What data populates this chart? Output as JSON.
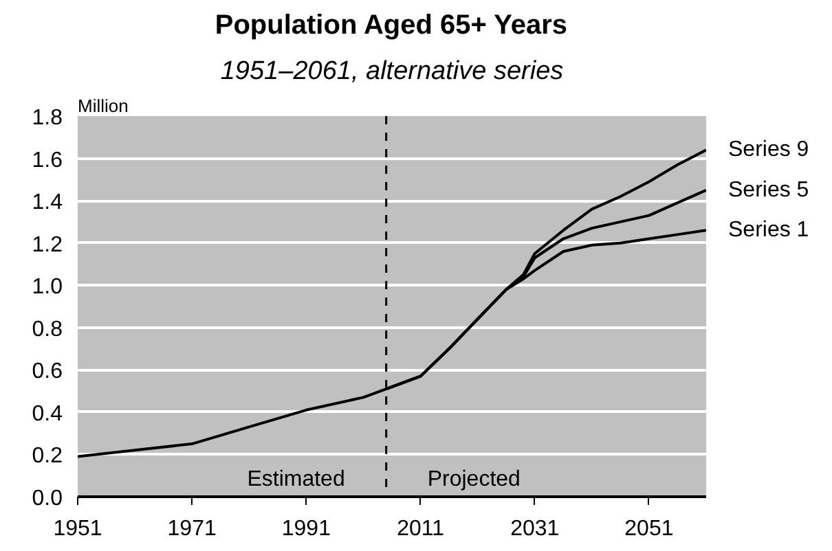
{
  "chart_data": {
    "type": "line",
    "title": "Population Aged 65+ Years",
    "subtitle": "1951–2061, alternative series",
    "ylabel": "Million",
    "xlim": [
      1951,
      2061
    ],
    "xticks": [
      1951,
      1971,
      1991,
      2011,
      2031,
      2051
    ],
    "ylim": [
      0,
      1.8
    ],
    "yticks": [
      {
        "value": 0,
        "label": "0.0"
      },
      0.2,
      0.4,
      0.6,
      0.8,
      {
        "value": 1,
        "label": "1.0"
      },
      1.2,
      1.4,
      1.6,
      1.8
    ],
    "grid": "y",
    "marker": "none",
    "line_style": "solid",
    "ref_lines": [
      {
        "axis": "x",
        "value": 2005,
        "label": null,
        "line_style": "dashed",
        "color": "#000000"
      }
    ],
    "annotations": [
      "Estimated",
      "Projected"
    ],
    "series": [
      {
        "name": "Series 9",
        "color": "#000000",
        "x": [
          2005,
          2011,
          2016,
          2021,
          2026,
          2029,
          2031,
          2036,
          2041,
          2046,
          2051,
          2056,
          2061
        ],
        "values": [
          0.51,
          0.57,
          0.7,
          0.84,
          0.98,
          1.05,
          1.15,
          1.26,
          1.36,
          1.42,
          1.49,
          1.57,
          1.64
        ]
      },
      {
        "name": "Series 5",
        "color": "#000000",
        "x": [
          1951,
          1961,
          1971,
          1981,
          1991,
          2001,
          2005,
          2011,
          2016,
          2021,
          2026,
          2029,
          2031,
          2036,
          2041,
          2046,
          2051,
          2056,
          2061
        ],
        "values": [
          0.19,
          0.22,
          0.25,
          0.33,
          0.41,
          0.47,
          0.51,
          0.57,
          0.7,
          0.84,
          0.98,
          1.04,
          1.13,
          1.22,
          1.27,
          1.3,
          1.33,
          1.39,
          1.45
        ]
      },
      {
        "name": "Series 1",
        "color": "#000000",
        "x": [
          2005,
          2011,
          2016,
          2021,
          2026,
          2029,
          2031,
          2036,
          2041,
          2046,
          2051,
          2056,
          2061
        ],
        "values": [
          0.51,
          0.57,
          0.7,
          0.84,
          0.98,
          1.03,
          1.07,
          1.16,
          1.19,
          1.2,
          1.22,
          1.24,
          1.26
        ]
      }
    ]
  }
}
